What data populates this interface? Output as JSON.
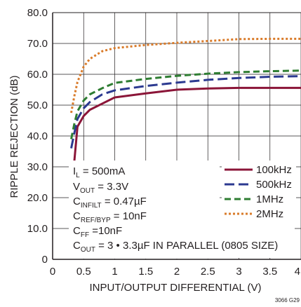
{
  "chart_data": {
    "type": "line",
    "xlabel": "INPUT/OUTPUT DIFFERENTIAL (V)",
    "ylabel": "RIPPLE REJECTION (dB)",
    "xlim": [
      0,
      4
    ],
    "ylim": [
      0,
      80
    ],
    "x_ticks": [
      "0",
      "0.5",
      "1",
      "1.5",
      "2",
      "2.5",
      "3",
      "3.5",
      "4"
    ],
    "y_ticks": [
      "0",
      "10.0",
      "20.0",
      "30.0",
      "40.0",
      "50.0",
      "60.0",
      "70.0",
      "80.0"
    ],
    "grid": true,
    "legend_position": "lower-right",
    "series": [
      {
        "name": "100kHz",
        "color": "#8b1538",
        "dash": "solid",
        "points": [
          [
            0.3,
            23.5
          ],
          [
            0.35,
            32
          ],
          [
            0.4,
            43
          ],
          [
            0.5,
            46.5
          ],
          [
            0.6,
            48.5
          ],
          [
            0.8,
            50.5
          ],
          [
            1.0,
            52.5
          ],
          [
            1.5,
            53.8
          ],
          [
            2.0,
            55
          ],
          [
            2.5,
            55.4
          ],
          [
            3.0,
            55.6
          ],
          [
            3.5,
            55.6
          ],
          [
            4.0,
            55.6
          ]
        ]
      },
      {
        "name": "500kHz",
        "color": "#2b3990",
        "dash": "long-dash",
        "points": [
          [
            0.3,
            36
          ],
          [
            0.35,
            41
          ],
          [
            0.4,
            45.5
          ],
          [
            0.5,
            49
          ],
          [
            0.6,
            51
          ],
          [
            0.8,
            53.5
          ],
          [
            1.0,
            54.8
          ],
          [
            1.5,
            56.2
          ],
          [
            2.0,
            57.3
          ],
          [
            2.5,
            58.2
          ],
          [
            3.0,
            58.8
          ],
          [
            3.5,
            59.2
          ],
          [
            4.0,
            59.4
          ]
        ]
      },
      {
        "name": "1MHz",
        "color": "#2e7d32",
        "dash": "dash",
        "points": [
          [
            0.3,
            39
          ],
          [
            0.35,
            44
          ],
          [
            0.4,
            48
          ],
          [
            0.5,
            51.5
          ],
          [
            0.6,
            53.5
          ],
          [
            0.8,
            55.5
          ],
          [
            1.0,
            57.2
          ],
          [
            1.5,
            58.5
          ],
          [
            2.0,
            59.5
          ],
          [
            2.5,
            60.2
          ],
          [
            3.0,
            60.7
          ],
          [
            3.5,
            61
          ],
          [
            4.0,
            61.2
          ]
        ]
      },
      {
        "name": "2MHz",
        "color": "#d97b2a",
        "dash": "dot",
        "points": [
          [
            0.3,
            47.5
          ],
          [
            0.35,
            53
          ],
          [
            0.4,
            57.5
          ],
          [
            0.5,
            62.5
          ],
          [
            0.6,
            65
          ],
          [
            0.8,
            67.5
          ],
          [
            1.0,
            68.5
          ],
          [
            1.5,
            69.5
          ],
          [
            2.0,
            70.2
          ],
          [
            2.5,
            70.8
          ],
          [
            3.0,
            71.4
          ],
          [
            3.5,
            71.5
          ],
          [
            4.0,
            71.5
          ]
        ]
      }
    ]
  },
  "annotations": {
    "il": {
      "main": "I",
      "sub": "L",
      "rest": " = 500mA"
    },
    "vout": {
      "main": "V",
      "sub": "OUT",
      "rest": " = 3.3V"
    },
    "cinfilt": {
      "main": "C",
      "sub": "INFILT",
      "rest": " = 0.47µF"
    },
    "cref": {
      "main": "C",
      "sub": "REF/BYP",
      "rest": " = 10nF"
    },
    "cff": {
      "main": "C",
      "sub": "FF",
      "rest": " =10nF"
    },
    "cout": {
      "main": "C",
      "sub": "OUT",
      "rest": " = 3 • 3.3µF IN PARALLEL (0805 SIZE)"
    }
  },
  "figure_id": "3066 G29"
}
